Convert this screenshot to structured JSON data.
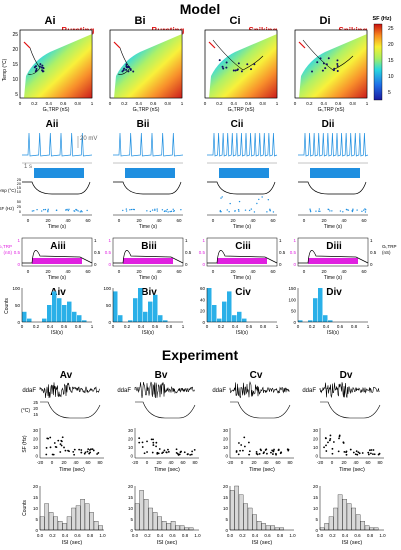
{
  "section_titles": {
    "model": "Model",
    "experiment": "Experiment"
  },
  "colorbar": {
    "title": "SF (Hz)",
    "ticks": [
      "25",
      "20",
      "15",
      "10",
      "5"
    ]
  },
  "heatmap_panels": [
    {
      "label": "Ai",
      "mode": "Bursting"
    },
    {
      "label": "Bi",
      "mode": "Bursting"
    },
    {
      "label": "Ci",
      "mode": "Spiking"
    },
    {
      "label": "Di",
      "mode": "Spiking"
    }
  ],
  "heatmap_axes": {
    "ylabel": "Temp (°C)",
    "yticks": [
      "25",
      "20",
      "15",
      "10",
      "5"
    ],
    "xticks": [
      "0",
      "0.2",
      "0.4",
      "0.6",
      "0.8",
      "1"
    ],
    "xlabel": "Gₗ,TRP (nS)"
  },
  "trace_panels": [
    "Aii",
    "Bii",
    "Cii",
    "Dii"
  ],
  "trace_scale": {
    "voltage": "20 mV",
    "time": "1 s"
  },
  "trace_axes": {
    "temp_label": "Temp (°C)",
    "sf_label": "SF (Hz)",
    "time_label": "Time (s)",
    "time_ticks": [
      "0",
      "20",
      "40",
      "60"
    ],
    "temp_ticks": [
      "25",
      "20",
      "15",
      "10"
    ],
    "sf_ticks": [
      "50",
      "25",
      "0"
    ]
  },
  "conductance_panels": [
    "Aiii",
    "Biii",
    "Ciii",
    "Diii"
  ],
  "conductance_axes": {
    "left_label": "Gₗ,TRP",
    "left_unit": "(nS)",
    "right_label": "Gₗ,TRP",
    "right_unit": "(nS)",
    "left_ticks": [
      "1",
      "0.5",
      "0"
    ],
    "right_ticks": [
      "1",
      "0.5",
      "0"
    ],
    "time_ticks": [
      "0",
      "20",
      "40",
      "60"
    ],
    "time_label": "Time (s)"
  },
  "hist_panels": [
    "Aiv",
    "Biv",
    "Civ",
    "Div"
  ],
  "hist_axes": {
    "ylabel": "Counts",
    "xlabel": "ISI(s)",
    "xticks": [
      "0",
      "0.2",
      "0.4",
      "0.6",
      "0.8",
      "1"
    ],
    "yticks_a": [
      "100",
      "50",
      "0"
    ],
    "yticks_b": [
      "100",
      "50",
      "0"
    ],
    "yticks_c": [
      "60",
      "40",
      "20",
      "0"
    ],
    "yticks_d": [
      "150",
      "100",
      "50",
      "0"
    ]
  },
  "exp_panels": [
    "Av",
    "Bv",
    "Cv",
    "Dv"
  ],
  "exp_axes": {
    "trace_label": "ddaF",
    "temp_label": "(°C)",
    "temp_ticks": [
      "25",
      "20",
      "15"
    ],
    "sf_label": "SF (Hz)",
    "sf_ticks": [
      "30",
      "20",
      "10",
      "0"
    ],
    "time_ticks": [
      "-20",
      "0",
      "20",
      "40",
      "60",
      "80"
    ],
    "time_label": "Time (sec)",
    "hist_ylabel": "Counts",
    "hist_yticks": [
      "20",
      "15",
      "10",
      "5",
      "0"
    ],
    "hist_xticks": [
      "0.0",
      "0.2",
      "0.4",
      "0.6",
      "0.8",
      "1.0"
    ],
    "hist_xlabel": "ISI (sec)"
  },
  "colors": {
    "model_trace": "#1f8fe0",
    "conductance_pink": "#e020e0",
    "hist_blue": "#2ab0e8",
    "red_label": "#e01010",
    "exp_hist": "#d8d8d8"
  }
}
